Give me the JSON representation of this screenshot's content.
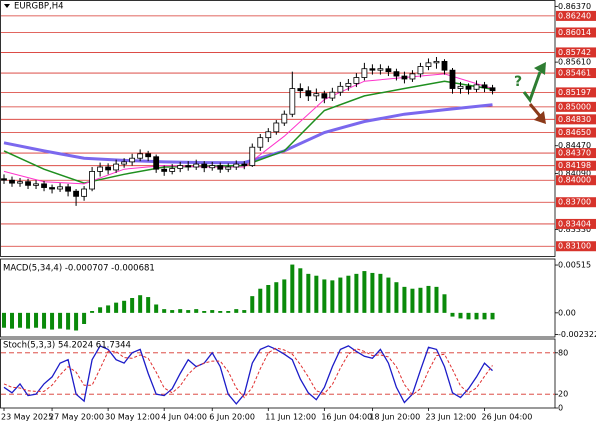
{
  "chart_data": [
    {
      "type": "candlestick",
      "title": "EURGBP,H4",
      "open": [
        0.8402,
        0.84,
        0.8396,
        0.8398,
        0.8393,
        0.8395,
        0.839,
        0.8388,
        0.8391,
        0.8385,
        0.8378,
        0.8388,
        0.8412,
        0.8418,
        0.8414,
        0.8422,
        0.8425,
        0.843,
        0.8436,
        0.8432,
        0.8415,
        0.8412,
        0.8416,
        0.842,
        0.8418,
        0.8422,
        0.8417,
        0.842,
        0.8415,
        0.8418,
        0.8422,
        0.842,
        0.8445,
        0.8458,
        0.8466,
        0.8478,
        0.849,
        0.8525,
        0.8522,
        0.8515,
        0.8518,
        0.8512,
        0.852,
        0.8528,
        0.8532,
        0.854,
        0.8552,
        0.855,
        0.8552,
        0.8548,
        0.8542,
        0.8538,
        0.8545,
        0.8555,
        0.856,
        0.8562,
        0.855,
        0.8525,
        0.8528,
        0.8524,
        0.853,
        0.8526
      ],
      "high": [
        0.8408,
        0.8405,
        0.8403,
        0.8402,
        0.84,
        0.8399,
        0.8394,
        0.8396,
        0.8395,
        0.8388,
        0.8392,
        0.8418,
        0.8424,
        0.8423,
        0.8428,
        0.843,
        0.8436,
        0.8442,
        0.844,
        0.8435,
        0.842,
        0.8422,
        0.8425,
        0.8426,
        0.8428,
        0.8426,
        0.8425,
        0.8424,
        0.8423,
        0.8427,
        0.8426,
        0.845,
        0.8463,
        0.8471,
        0.8482,
        0.8495,
        0.8548,
        0.8532,
        0.8528,
        0.8525,
        0.8522,
        0.8526,
        0.8534,
        0.8538,
        0.8546,
        0.856,
        0.8558,
        0.8558,
        0.8556,
        0.8552,
        0.8548,
        0.855,
        0.856,
        0.8566,
        0.8568,
        0.8565,
        0.8553,
        0.8534,
        0.8532,
        0.8536,
        0.8534,
        0.853
      ],
      "low": [
        0.8395,
        0.8391,
        0.8391,
        0.8388,
        0.8388,
        0.8385,
        0.8382,
        0.8384,
        0.8378,
        0.8365,
        0.8372,
        0.8385,
        0.8405,
        0.8408,
        0.841,
        0.8417,
        0.842,
        0.8426,
        0.8426,
        0.841,
        0.8406,
        0.8408,
        0.8411,
        0.8413,
        0.8414,
        0.8411,
        0.8413,
        0.841,
        0.8411,
        0.8414,
        0.8415,
        0.8418,
        0.844,
        0.8452,
        0.8462,
        0.8474,
        0.8486,
        0.8512,
        0.8508,
        0.8508,
        0.8505,
        0.8508,
        0.8515,
        0.8522,
        0.8527,
        0.8536,
        0.8544,
        0.8544,
        0.8542,
        0.8536,
        0.8532,
        0.8534,
        0.854,
        0.855,
        0.8552,
        0.8544,
        0.8518,
        0.8518,
        0.8517,
        0.852,
        0.852,
        0.8517
      ],
      "close": [
        0.84,
        0.8396,
        0.8398,
        0.8393,
        0.8395,
        0.839,
        0.8388,
        0.8391,
        0.8385,
        0.8378,
        0.8388,
        0.8412,
        0.8418,
        0.8414,
        0.8422,
        0.8425,
        0.843,
        0.8436,
        0.8432,
        0.8415,
        0.8412,
        0.8416,
        0.842,
        0.8418,
        0.8422,
        0.8417,
        0.842,
        0.8415,
        0.8418,
        0.8422,
        0.842,
        0.8445,
        0.8458,
        0.8466,
        0.8478,
        0.849,
        0.8525,
        0.8522,
        0.8515,
        0.8518,
        0.8512,
        0.852,
        0.8528,
        0.8532,
        0.854,
        0.8552,
        0.855,
        0.8552,
        0.8548,
        0.8542,
        0.8538,
        0.8545,
        0.8555,
        0.856,
        0.8562,
        0.855,
        0.8525,
        0.8528,
        0.8524,
        0.853,
        0.8526,
        0.8522
      ],
      "ma": [
        {
          "color": "#7b68ee",
          "width": 3,
          "x": [
            0,
            5,
            10,
            15,
            20,
            25,
            30,
            35,
            40,
            45,
            50,
            55,
            61
          ],
          "values": [
            0.8451,
            0.844,
            0.843,
            0.8427,
            0.8425,
            0.8424,
            0.8424,
            0.844,
            0.8465,
            0.848,
            0.849,
            0.8496,
            0.8503
          ]
        },
        {
          "color": "#1f8f1f",
          "width": 1.5,
          "x": [
            0,
            5,
            10,
            15,
            20,
            25,
            30,
            35,
            40,
            45,
            50,
            55,
            61
          ],
          "values": [
            0.844,
            0.8415,
            0.8396,
            0.8408,
            0.8418,
            0.8419,
            0.842,
            0.844,
            0.8495,
            0.8515,
            0.8525,
            0.8535,
            0.8524
          ]
        },
        {
          "color": "#ff33cc",
          "width": 1,
          "x": [
            0,
            5,
            10,
            15,
            20,
            25,
            30,
            35,
            40,
            45,
            50,
            55,
            61
          ],
          "values": [
            0.8412,
            0.8398,
            0.8395,
            0.8415,
            0.842,
            0.8418,
            0.8418,
            0.846,
            0.851,
            0.8535,
            0.854,
            0.8545,
            0.8525
          ]
        }
      ],
      "xlim": [
        -0.5,
        68.8
      ],
      "xticks": [
        {
          "value": 0,
          "label": "23 May 2025"
        },
        {
          "value": 6,
          "label": "27 May 20:00"
        },
        {
          "value": 13,
          "label": "30 May 12:00"
        },
        {
          "value": 20,
          "label": "4 Jun 04:00"
        },
        {
          "value": 26,
          "label": "6 Jun 20:00"
        },
        {
          "value": 33,
          "label": "11 Jun 12:00"
        },
        {
          "value": 40,
          "label": "16 Jun 04:00"
        },
        {
          "value": 46,
          "label": "18 Jun 20:00"
        },
        {
          "value": 53,
          "label": "23 Jun 12:00"
        },
        {
          "value": 60,
          "label": "26 Jun 04:00"
        }
      ],
      "ylim": [
        0.8296,
        0.8645
      ],
      "yticks": [
        {
          "value": 0.8637,
          "label": "0.86370"
        },
        {
          "value": 0.8561,
          "label": "0.85610"
        },
        {
          "value": 0.8447,
          "label": "0.84470"
        },
        {
          "value": 0.8409,
          "label": "0.84090"
        },
        {
          "value": 0.8333,
          "label": "0.83330"
        }
      ],
      "level_color": "#d7332b",
      "levels": [
        {
          "value": 0.8624,
          "label": "0.86240"
        },
        {
          "value": 0.86014,
          "label": "0.86014"
        },
        {
          "value": 0.85742,
          "label": "0.85742"
        },
        {
          "value": 0.85461,
          "label": "0.85461"
        },
        {
          "value": 0.85197,
          "label": "0.85197"
        },
        {
          "value": 0.85,
          "label": "0.85000"
        },
        {
          "value": 0.8483,
          "label": "0.84830"
        },
        {
          "value": 0.8465,
          "label": "0.84650"
        },
        {
          "value": 0.8437,
          "label": "0.84370"
        },
        {
          "value": 0.84198,
          "label": "0.84198"
        },
        {
          "value": 0.84,
          "label": "0.84000"
        },
        {
          "value": 0.837,
          "label": "0.83700"
        },
        {
          "value": 0.83404,
          "label": "0.83404"
        },
        {
          "value": 0.831,
          "label": "0.83100"
        }
      ],
      "annotation": "?"
    },
    {
      "type": "bar",
      "title": "MACD(5,34,4) -0.000707 -0.000681",
      "color": "#0a8a0a",
      "values": [
        -0.0016,
        -0.0017,
        -0.0016,
        -0.0017,
        -0.0016,
        -0.0017,
        -0.0018,
        -0.0017,
        -0.0018,
        -0.0019,
        -0.0012,
        0.0002,
        0.0006,
        0.0008,
        0.0011,
        0.0013,
        0.0016,
        0.0019,
        0.0017,
        0.0009,
        0.0004,
        0.0003,
        0.0004,
        0.0003,
        0.0004,
        0.0002,
        0.0003,
        0.0002,
        0.0002,
        0.0004,
        0.0003,
        0.0018,
        0.0026,
        0.003,
        0.0033,
        0.0036,
        0.0052,
        0.0048,
        0.0042,
        0.004,
        0.0036,
        0.0035,
        0.0038,
        0.004,
        0.0042,
        0.0045,
        0.0043,
        0.0042,
        0.0038,
        0.0033,
        0.0028,
        0.0026,
        0.0027,
        0.0029,
        0.0028,
        0.002,
        -0.0004,
        -0.0006,
        -0.0007,
        -0.0007,
        -0.0007,
        -0.0007
      ],
      "ylim": [
        -0.0026,
        0.0058
      ],
      "yticks": [
        0.00515,
        {
          "value": 0,
          "label": "0.00"
        },
        -0.002322
      ]
    },
    {
      "type": "line",
      "title": "Stoch(5,3,3) 54.2024 61.7344",
      "series": [
        {
          "color": "#1c1cc8",
          "dash": false,
          "values": [
            30,
            22,
            35,
            18,
            20,
            35,
            45,
            65,
            70,
            20,
            10,
            70,
            90,
            85,
            70,
            65,
            80,
            85,
            50,
            20,
            18,
            28,
            50,
            70,
            60,
            65,
            80,
            60,
            20,
            6,
            20,
            65,
            85,
            90,
            85,
            78,
            70,
            42,
            22,
            12,
            30,
            60,
            85,
            90,
            82,
            75,
            72,
            85,
            65,
            30,
            8,
            20,
            55,
            88,
            85,
            60,
            22,
            15,
            28,
            45,
            65,
            54.2024
          ]
        },
        {
          "color": "#e03030",
          "dash": true,
          "values": [
            35,
            30,
            29,
            25,
            24,
            24,
            33,
            48,
            60,
            52,
            33,
            33,
            57,
            82,
            82,
            73,
            72,
            77,
            72,
            52,
            29,
            22,
            32,
            49,
            60,
            65,
            68,
            68,
            53,
            29,
            15,
            30,
            57,
            80,
            87,
            84,
            78,
            63,
            45,
            25,
            21,
            34,
            58,
            78,
            86,
            82,
            76,
            77,
            74,
            60,
            34,
            19,
            28,
            54,
            76,
            78,
            56,
            32,
            22,
            29,
            46,
            61.7344
          ]
        }
      ],
      "ylim": [
        0,
        100
      ],
      "yticks": [
        0,
        20,
        80
      ],
      "grid_color": "#d7332b"
    }
  ]
}
